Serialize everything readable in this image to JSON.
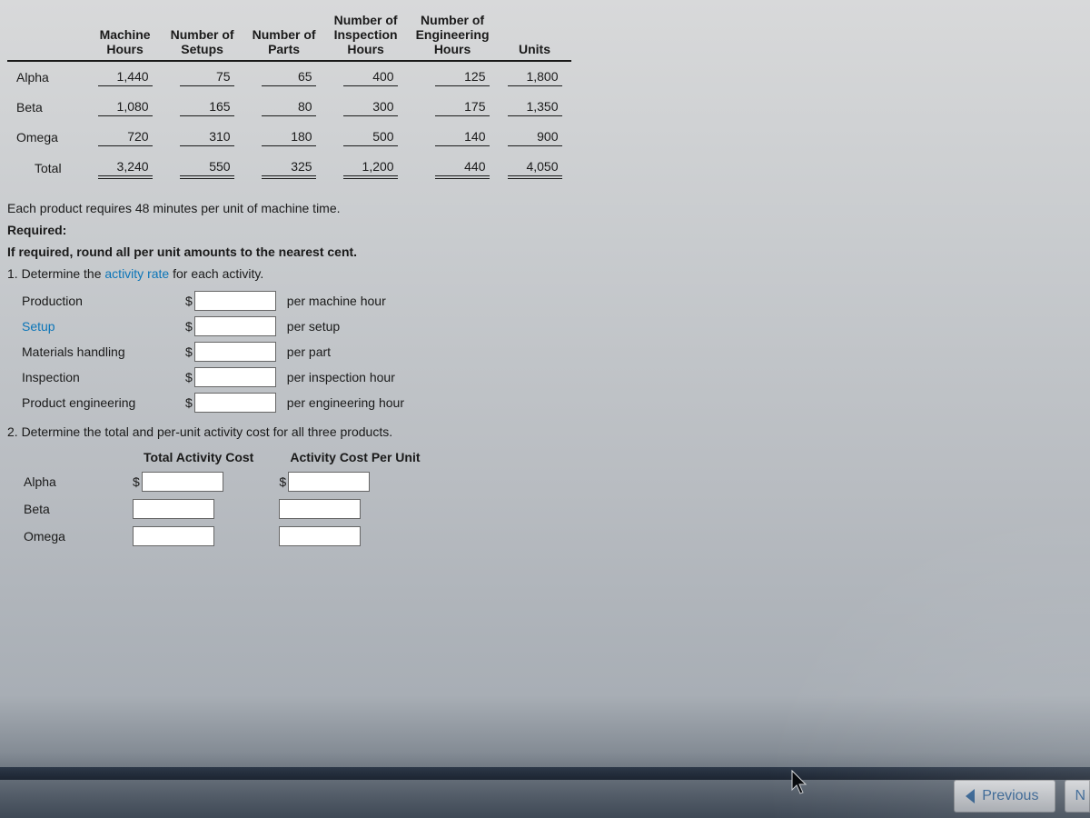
{
  "table": {
    "headers": {
      "machine_hours": "Machine\nHours",
      "setups": "Number of\nSetups",
      "parts": "Number of\nParts",
      "inspection": "Number of\nInspection\nHours",
      "engineering": "Number of\nEngineering\nHours",
      "units": "Units"
    },
    "rows": [
      {
        "label": "Alpha",
        "mh": "1,440",
        "setups": "75",
        "parts": "65",
        "insp": "400",
        "eng": "125",
        "units": "1,800"
      },
      {
        "label": "Beta",
        "mh": "1,080",
        "setups": "165",
        "parts": "80",
        "insp": "300",
        "eng": "175",
        "units": "1,350"
      },
      {
        "label": "Omega",
        "mh": "720",
        "setups": "310",
        "parts": "180",
        "insp": "500",
        "eng": "140",
        "units": "900"
      }
    ],
    "total": {
      "label": "Total",
      "mh": "3,240",
      "setups": "550",
      "parts": "325",
      "insp": "1,200",
      "eng": "440",
      "units": "4,050"
    }
  },
  "note_line": "Each product requires 48 minutes per unit of machine time.",
  "required_label": "Required:",
  "round_line": "If required, round all per unit amounts to the nearest cent.",
  "q1": {
    "prompt_pre": "1.  Determine the ",
    "prompt_link": "activity rate",
    "prompt_post": " for each activity.",
    "rows": [
      {
        "label": "Production",
        "link": false,
        "suffix": "per machine hour"
      },
      {
        "label": "Setup",
        "link": true,
        "suffix": "per setup"
      },
      {
        "label": "Materials handling",
        "link": false,
        "suffix": "per part"
      },
      {
        "label": "Inspection",
        "link": false,
        "suffix": "per inspection hour"
      },
      {
        "label": "Product engineering",
        "link": false,
        "suffix": "per engineering hour"
      }
    ]
  },
  "q2": {
    "prompt": "2.  Determine the total and per-unit activity cost for all three products.",
    "col1": "Total Activity Cost",
    "col2": "Activity Cost Per Unit",
    "rows": [
      "Alpha",
      "Beta",
      "Omega"
    ]
  },
  "nav": {
    "previous": "Previous",
    "next_stub": "N"
  },
  "colors": {
    "link": "#0b75b8",
    "text": "#1a1a1a",
    "button_text": "#3b78b5"
  }
}
